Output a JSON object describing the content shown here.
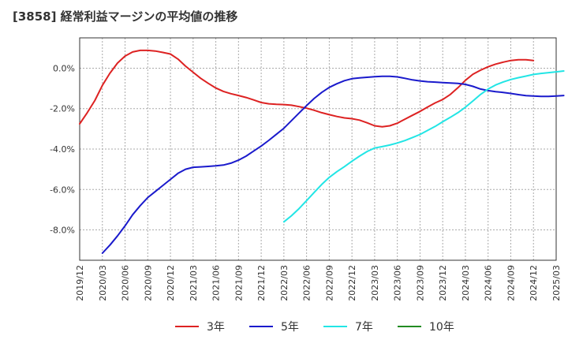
{
  "chart_data": {
    "type": "line",
    "title": "[3858]  経常利益マージンの平均値の推移",
    "xlabel": "",
    "ylabel": "",
    "x_ticks": [
      "2019/12",
      "2020/03",
      "2020/06",
      "2020/09",
      "2020/12",
      "2021/03",
      "2021/06",
      "2021/09",
      "2021/12",
      "2022/03",
      "2022/06",
      "2022/09",
      "2022/12",
      "2023/03",
      "2023/06",
      "2023/09",
      "2023/12",
      "2024/03",
      "2024/06",
      "2024/09",
      "2024/12",
      "2025/03"
    ],
    "y_ticks": [
      0.0,
      -2.0,
      -4.0,
      -6.0,
      -8.0
    ],
    "y_tick_labels": [
      "0.0%",
      "-2.0%",
      "-4.0%",
      "-6.0%",
      "-8.0%"
    ],
    "ylim": [
      -9.5,
      1.5
    ],
    "grid": true,
    "legend_position": "bottom",
    "series": [
      {
        "name": "3年",
        "color": "#dd2222",
        "points": [
          [
            "2019/12",
            -2.75
          ],
          [
            "2020/01",
            -2.2
          ],
          [
            "2020/02",
            -1.6
          ],
          [
            "2020/03",
            -0.85
          ],
          [
            "2020/04",
            -0.25
          ],
          [
            "2020/05",
            0.25
          ],
          [
            "2020/06",
            0.6
          ],
          [
            "2020/07",
            0.8
          ],
          [
            "2020/08",
            0.88
          ],
          [
            "2020/09",
            0.88
          ],
          [
            "2020/10",
            0.85
          ],
          [
            "2020/11",
            0.78
          ],
          [
            "2020/12",
            0.7
          ],
          [
            "2021/01",
            0.45
          ],
          [
            "2021/02",
            0.1
          ],
          [
            "2021/03",
            -0.2
          ],
          [
            "2021/04",
            -0.5
          ],
          [
            "2021/05",
            -0.75
          ],
          [
            "2021/06",
            -0.98
          ],
          [
            "2021/07",
            -1.15
          ],
          [
            "2021/08",
            -1.26
          ],
          [
            "2021/09",
            -1.35
          ],
          [
            "2021/10",
            -1.45
          ],
          [
            "2021/11",
            -1.57
          ],
          [
            "2021/12",
            -1.7
          ],
          [
            "2022/01",
            -1.76
          ],
          [
            "2022/02",
            -1.79
          ],
          [
            "2022/03",
            -1.8
          ],
          [
            "2022/04",
            -1.83
          ],
          [
            "2022/05",
            -1.9
          ],
          [
            "2022/06",
            -1.98
          ],
          [
            "2022/07",
            -2.08
          ],
          [
            "2022/08",
            -2.2
          ],
          [
            "2022/09",
            -2.3
          ],
          [
            "2022/10",
            -2.39
          ],
          [
            "2022/11",
            -2.46
          ],
          [
            "2022/12",
            -2.5
          ],
          [
            "2023/01",
            -2.57
          ],
          [
            "2023/02",
            -2.7
          ],
          [
            "2023/03",
            -2.85
          ],
          [
            "2023/04",
            -2.9
          ],
          [
            "2023/05",
            -2.85
          ],
          [
            "2023/06",
            -2.72
          ],
          [
            "2023/07",
            -2.52
          ],
          [
            "2023/08",
            -2.33
          ],
          [
            "2023/09",
            -2.14
          ],
          [
            "2023/10",
            -1.92
          ],
          [
            "2023/11",
            -1.72
          ],
          [
            "2023/12",
            -1.55
          ],
          [
            "2024/01",
            -1.3
          ],
          [
            "2024/02",
            -0.97
          ],
          [
            "2024/03",
            -0.6
          ],
          [
            "2024/04",
            -0.3
          ],
          [
            "2024/05",
            -0.1
          ],
          [
            "2024/06",
            0.07
          ],
          [
            "2024/07",
            0.2
          ],
          [
            "2024/08",
            0.3
          ],
          [
            "2024/09",
            0.38
          ],
          [
            "2024/10",
            0.42
          ],
          [
            "2024/11",
            0.42
          ],
          [
            "2024/12",
            0.38
          ]
        ]
      },
      {
        "name": "5年",
        "color": "#1a1acc",
        "points": [
          [
            "2020/03",
            -9.15
          ],
          [
            "2020/04",
            -8.75
          ],
          [
            "2020/05",
            -8.3
          ],
          [
            "2020/06",
            -7.8
          ],
          [
            "2020/07",
            -7.25
          ],
          [
            "2020/08",
            -6.8
          ],
          [
            "2020/09",
            -6.4
          ],
          [
            "2020/10",
            -6.1
          ],
          [
            "2020/11",
            -5.8
          ],
          [
            "2020/12",
            -5.5
          ],
          [
            "2021/01",
            -5.2
          ],
          [
            "2021/02",
            -5.0
          ],
          [
            "2021/03",
            -4.9
          ],
          [
            "2021/04",
            -4.88
          ],
          [
            "2021/05",
            -4.86
          ],
          [
            "2021/06",
            -4.83
          ],
          [
            "2021/07",
            -4.79
          ],
          [
            "2021/08",
            -4.7
          ],
          [
            "2021/09",
            -4.55
          ],
          [
            "2021/10",
            -4.35
          ],
          [
            "2021/11",
            -4.1
          ],
          [
            "2021/12",
            -3.85
          ],
          [
            "2022/01",
            -3.57
          ],
          [
            "2022/02",
            -3.27
          ],
          [
            "2022/03",
            -2.97
          ],
          [
            "2022/04",
            -2.6
          ],
          [
            "2022/05",
            -2.22
          ],
          [
            "2022/06",
            -1.85
          ],
          [
            "2022/07",
            -1.5
          ],
          [
            "2022/08",
            -1.2
          ],
          [
            "2022/09",
            -0.95
          ],
          [
            "2022/10",
            -0.77
          ],
          [
            "2022/11",
            -0.62
          ],
          [
            "2022/12",
            -0.52
          ],
          [
            "2023/01",
            -0.48
          ],
          [
            "2023/02",
            -0.45
          ],
          [
            "2023/03",
            -0.42
          ],
          [
            "2023/04",
            -0.4
          ],
          [
            "2023/05",
            -0.4
          ],
          [
            "2023/06",
            -0.43
          ],
          [
            "2023/07",
            -0.5
          ],
          [
            "2023/08",
            -0.58
          ],
          [
            "2023/09",
            -0.63
          ],
          [
            "2023/10",
            -0.67
          ],
          [
            "2023/11",
            -0.69
          ],
          [
            "2023/12",
            -0.71
          ],
          [
            "2024/01",
            -0.73
          ],
          [
            "2024/02",
            -0.75
          ],
          [
            "2024/03",
            -0.8
          ],
          [
            "2024/04",
            -0.9
          ],
          [
            "2024/05",
            -1.03
          ],
          [
            "2024/06",
            -1.11
          ],
          [
            "2024/07",
            -1.16
          ],
          [
            "2024/08",
            -1.2
          ],
          [
            "2024/09",
            -1.25
          ],
          [
            "2024/10",
            -1.31
          ],
          [
            "2024/11",
            -1.36
          ],
          [
            "2024/12",
            -1.38
          ],
          [
            "2025/01",
            -1.4
          ],
          [
            "2025/02",
            -1.4
          ],
          [
            "2025/03",
            -1.38
          ],
          [
            "2025/04",
            -1.35
          ]
        ]
      },
      {
        "name": "7年",
        "color": "#22e5e5",
        "points": [
          [
            "2022/03",
            -7.6
          ],
          [
            "2022/04",
            -7.3
          ],
          [
            "2022/05",
            -6.95
          ],
          [
            "2022/06",
            -6.55
          ],
          [
            "2022/07",
            -6.15
          ],
          [
            "2022/08",
            -5.75
          ],
          [
            "2022/09",
            -5.4
          ],
          [
            "2022/10",
            -5.12
          ],
          [
            "2022/11",
            -4.87
          ],
          [
            "2022/12",
            -4.6
          ],
          [
            "2023/01",
            -4.35
          ],
          [
            "2023/02",
            -4.12
          ],
          [
            "2023/03",
            -3.95
          ],
          [
            "2023/04",
            -3.88
          ],
          [
            "2023/05",
            -3.8
          ],
          [
            "2023/06",
            -3.7
          ],
          [
            "2023/07",
            -3.58
          ],
          [
            "2023/08",
            -3.43
          ],
          [
            "2023/09",
            -3.28
          ],
          [
            "2023/10",
            -3.08
          ],
          [
            "2023/11",
            -2.88
          ],
          [
            "2023/12",
            -2.65
          ],
          [
            "2024/01",
            -2.43
          ],
          [
            "2024/02",
            -2.2
          ],
          [
            "2024/03",
            -1.93
          ],
          [
            "2024/04",
            -1.62
          ],
          [
            "2024/05",
            -1.3
          ],
          [
            "2024/06",
            -1.03
          ],
          [
            "2024/07",
            -0.83
          ],
          [
            "2024/08",
            -0.68
          ],
          [
            "2024/09",
            -0.56
          ],
          [
            "2024/10",
            -0.47
          ],
          [
            "2024/11",
            -0.39
          ],
          [
            "2024/12",
            -0.31
          ],
          [
            "2025/01",
            -0.26
          ],
          [
            "2025/02",
            -0.22
          ],
          [
            "2025/03",
            -0.18
          ],
          [
            "2025/04",
            -0.14
          ]
        ]
      },
      {
        "name": "10年",
        "color": "#228b22",
        "points": []
      }
    ]
  }
}
